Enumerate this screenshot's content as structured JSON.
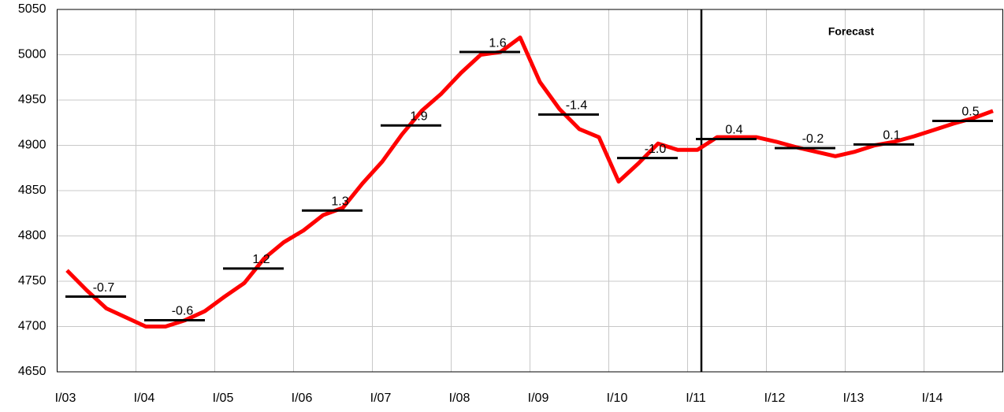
{
  "chart_data": {
    "type": "line",
    "annotation": "Forecast",
    "categories": [
      "I/03",
      null,
      null,
      null,
      "I/04",
      null,
      null,
      null,
      "I/05",
      null,
      null,
      null,
      "I/06",
      null,
      null,
      null,
      "I/07",
      null,
      null,
      null,
      "I/08",
      null,
      null,
      null,
      "I/09",
      null,
      null,
      null,
      "I/10",
      null,
      null,
      null,
      "I/11",
      null,
      null,
      null,
      "I/12",
      null,
      null,
      null,
      "I/13",
      null,
      null,
      null,
      "I/14",
      null,
      null,
      null
    ],
    "series": [
      {
        "color": "#ff0000",
        "values": [
          4762,
          4740,
          4720,
          4710,
          4700,
          4700,
          4707,
          4717,
          4733,
          4748,
          4775,
          4793,
          4806,
          4823,
          4831,
          4858,
          4882,
          4912,
          4938,
          4957,
          4980,
          5000,
          5003,
          5019,
          4970,
          4940,
          4918,
          4909,
          4860,
          4880,
          4902,
          4895,
          4895,
          4909,
          4909,
          4909,
          4904,
          4898,
          4893,
          4888,
          4893,
          4900,
          4904,
          4910,
          4917,
          4924,
          4930,
          4938
        ]
      }
    ],
    "annual_average": {
      "color": "#000000",
      "values": [
        4733,
        4707,
        4764,
        4828,
        4922,
        5003,
        4934,
        4886,
        4907,
        4897,
        4901,
        4927
      ],
      "growth": [
        -0.7,
        -0.6,
        1.2,
        1.3,
        1.9,
        1.6,
        -1.4,
        -1.0,
        0.4,
        -0.2,
        0.1,
        0.5
      ],
      "growth_labels": [
        "-0.7",
        "-0.6",
        "1.2",
        "1.3",
        "1.9",
        "1.6",
        "-1.4",
        "-1.0",
        "0.4",
        "-0.2",
        "0.1",
        "0.5"
      ]
    },
    "ylim": [
      4650,
      5050
    ],
    "yticks": [
      4650,
      4700,
      4750,
      4800,
      4850,
      4900,
      4950,
      5000,
      5050
    ],
    "grid": true
  }
}
